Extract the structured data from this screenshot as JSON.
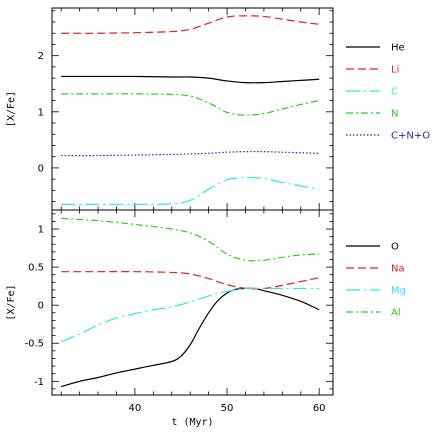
{
  "chart_data": [
    {
      "type": "line",
      "panel": "top",
      "title": "",
      "xlabel": "",
      "ylabel": "[X/Fe]",
      "xlim": [
        31,
        61.5
      ],
      "ylim": [
        -0.75,
        2.85
      ],
      "x_ticks": [
        "40",
        "50",
        "60"
      ],
      "x_tick_labels_shown": false,
      "y_ticks": [
        "0",
        "1",
        "2"
      ],
      "grid": false,
      "legend": "right",
      "series": [
        {
          "name": "He",
          "color": "#000000",
          "dash": "solid",
          "x": [
            32,
            36,
            40,
            44,
            46,
            48,
            50,
            52,
            54,
            56,
            58,
            60
          ],
          "y": [
            1.63,
            1.63,
            1.63,
            1.62,
            1.62,
            1.6,
            1.55,
            1.52,
            1.52,
            1.54,
            1.56,
            1.58
          ]
        },
        {
          "name": "Li",
          "color": "#e8201e",
          "dash": "long-dash",
          "x": [
            32,
            36,
            40,
            44,
            46,
            48,
            50,
            52,
            54,
            56,
            58,
            60
          ],
          "y": [
            2.4,
            2.4,
            2.41,
            2.43,
            2.47,
            2.58,
            2.69,
            2.71,
            2.7,
            2.65,
            2.6,
            2.56
          ]
        },
        {
          "name": "C",
          "color": "#33e6f0",
          "dash": "dash-dot-long",
          "x": [
            32,
            36,
            40,
            44,
            46,
            48,
            50,
            52,
            54,
            56,
            58,
            60
          ],
          "y": [
            -0.65,
            -0.65,
            -0.65,
            -0.64,
            -0.58,
            -0.38,
            -0.21,
            -0.17,
            -0.19,
            -0.26,
            -0.32,
            -0.38
          ]
        },
        {
          "name": "N",
          "color": "#2ad11e",
          "dash": "dash-dot",
          "x": [
            32,
            36,
            40,
            44,
            46,
            48,
            50,
            52,
            54,
            56,
            58,
            60
          ],
          "y": [
            1.32,
            1.32,
            1.32,
            1.31,
            1.28,
            1.16,
            0.99,
            0.94,
            0.97,
            1.05,
            1.13,
            1.2
          ]
        },
        {
          "name": "C+N+O",
          "color": "#1f1fd1",
          "dash": "dotted",
          "x": [
            32,
            36,
            40,
            44,
            46,
            48,
            50,
            52,
            54,
            56,
            58,
            60
          ],
          "y": [
            0.22,
            0.22,
            0.23,
            0.24,
            0.25,
            0.26,
            0.28,
            0.29,
            0.29,
            0.28,
            0.27,
            0.26
          ]
        }
      ]
    },
    {
      "type": "line",
      "panel": "bottom",
      "title": "",
      "xlabel": "t (Myr)",
      "ylabel": "[X/Fe]",
      "xlim": [
        31,
        61.5
      ],
      "ylim": [
        -1.18,
        1.25
      ],
      "x_ticks": [
        "40",
        "50",
        "60"
      ],
      "y_ticks": [
        "-1",
        "-0.5",
        "0",
        "0.5",
        "1"
      ],
      "grid": false,
      "legend": "right",
      "series": [
        {
          "name": "O",
          "color": "#000000",
          "dash": "solid",
          "x": [
            32,
            34,
            36,
            38,
            40,
            42,
            44,
            45,
            46,
            47,
            48,
            49,
            50,
            51,
            52,
            53,
            54,
            56,
            58,
            60
          ],
          "y": [
            -1.07,
            -1.0,
            -0.95,
            -0.89,
            -0.84,
            -0.79,
            -0.74,
            -0.67,
            -0.52,
            -0.3,
            -0.1,
            0.06,
            0.16,
            0.21,
            0.22,
            0.22,
            0.19,
            0.13,
            0.05,
            -0.06
          ]
        },
        {
          "name": "Na",
          "color": "#e8201e",
          "dash": "long-dash",
          "x": [
            32,
            36,
            40,
            44,
            46,
            48,
            50,
            52,
            54,
            56,
            58,
            60
          ],
          "y": [
            0.44,
            0.44,
            0.44,
            0.43,
            0.41,
            0.35,
            0.27,
            0.22,
            0.22,
            0.26,
            0.31,
            0.36
          ]
        },
        {
          "name": "Mg",
          "color": "#33e6f0",
          "dash": "dash-dot-long",
          "x": [
            32,
            34,
            36,
            38,
            40,
            42,
            44,
            46,
            48,
            50,
            52,
            54,
            56,
            58,
            60
          ],
          "y": [
            -0.48,
            -0.38,
            -0.26,
            -0.17,
            -0.11,
            -0.06,
            -0.02,
            0.04,
            0.12,
            0.18,
            0.22,
            0.22,
            0.22,
            0.22,
            0.22
          ]
        },
        {
          "name": "Al",
          "color": "#2ad11e",
          "dash": "dash-dot",
          "x": [
            32,
            36,
            40,
            44,
            46,
            48,
            50,
            52,
            54,
            56,
            58,
            60
          ],
          "y": [
            1.14,
            1.11,
            1.06,
            1.0,
            0.95,
            0.84,
            0.67,
            0.59,
            0.59,
            0.63,
            0.66,
            0.67
          ]
        }
      ]
    }
  ]
}
